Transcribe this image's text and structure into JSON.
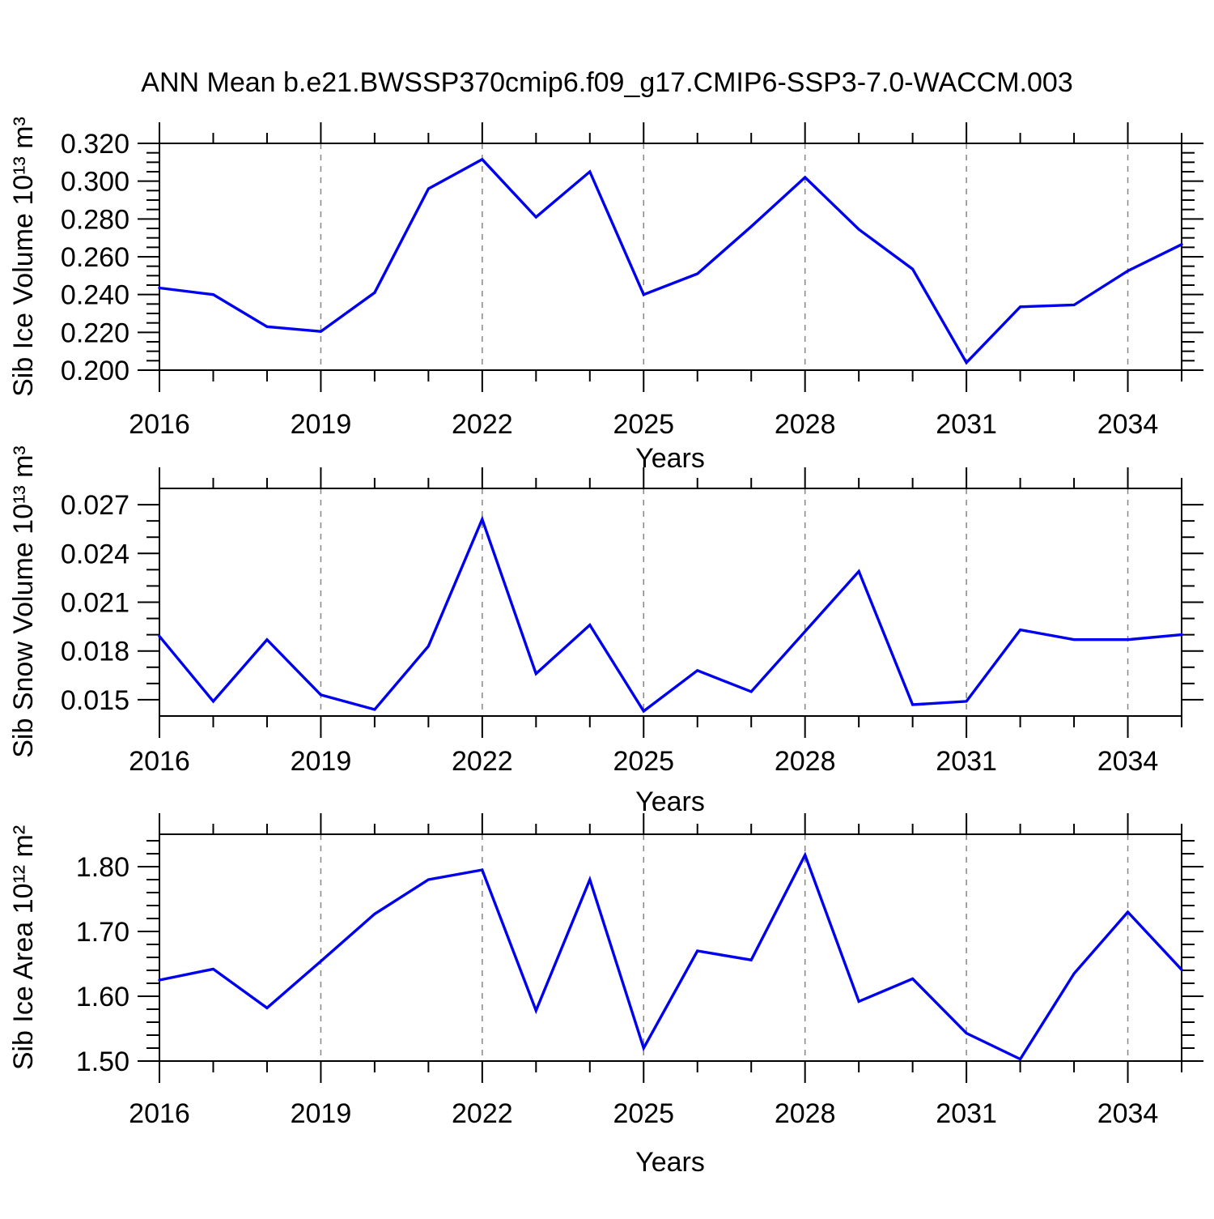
{
  "title": "ANN Mean b.e21.BWSSP370cmip6.f09_g17.CMIP6-SSP3-7.0-WACCM.003",
  "colors": {
    "line": "#0000f0",
    "grid": "#878787",
    "axis": "#000000",
    "background": "#ffffff",
    "text": "#000000"
  },
  "x_axis": {
    "label": "Years",
    "years": [
      2016,
      2017,
      2018,
      2019,
      2020,
      2021,
      2022,
      2023,
      2024,
      2025,
      2026,
      2027,
      2028,
      2029,
      2030,
      2031,
      2032,
      2033,
      2034,
      2035
    ],
    "major_tick_years": [
      2016,
      2019,
      2022,
      2025,
      2028,
      2031,
      2034
    ],
    "major_tick_labels": [
      "2016",
      "2019",
      "2022",
      "2025",
      "2028",
      "2031",
      "2034"
    ],
    "gridline_years": [
      2019,
      2022,
      2025,
      2028,
      2031,
      2034
    ]
  },
  "chart_data": [
    {
      "type": "line",
      "series_name": "Sib Ice Volume",
      "ylabel": "Sib Ice Volume 10¹³ m³",
      "xlabel": "Years",
      "x": [
        2016,
        2017,
        2018,
        2019,
        2020,
        2021,
        2022,
        2023,
        2024,
        2025,
        2026,
        2027,
        2028,
        2029,
        2030,
        2031,
        2032,
        2033,
        2034,
        2035
      ],
      "values": [
        0.2435,
        0.24,
        0.223,
        0.2205,
        0.241,
        0.296,
        0.3115,
        0.281,
        0.305,
        0.24,
        0.251,
        0.276,
        0.302,
        0.2745,
        0.2535,
        0.204,
        0.2335,
        0.2345,
        0.2525,
        0.2665
      ],
      "ylim": [
        0.2,
        0.32
      ],
      "yticks": {
        "values": [
          0.2,
          0.22,
          0.24,
          0.26,
          0.28,
          0.3,
          0.32
        ],
        "labels": [
          "0.200",
          "0.220",
          "0.240",
          "0.260",
          "0.280",
          "0.300",
          "0.320"
        ]
      },
      "y_minor_step": 0.005,
      "grid": "vertical-dashed",
      "legend": "none"
    },
    {
      "type": "line",
      "series_name": "Sib Snow Volume",
      "ylabel": "Sib Snow Volume 10¹³ m³",
      "xlabel": "Years",
      "x": [
        2016,
        2017,
        2018,
        2019,
        2020,
        2021,
        2022,
        2023,
        2024,
        2025,
        2026,
        2027,
        2028,
        2029,
        2030,
        2031,
        2032,
        2033,
        2034,
        2035
      ],
      "values": [
        0.0189,
        0.0149,
        0.0187,
        0.0153,
        0.0144,
        0.0183,
        0.0261,
        0.0166,
        0.0196,
        0.0143,
        0.0168,
        0.0155,
        0.0192,
        0.0229,
        0.0147,
        0.0149,
        0.0193,
        0.0187,
        0.0187,
        0.019
      ],
      "ylim": [
        0.014,
        0.028
      ],
      "yticks": {
        "values": [
          0.015,
          0.018,
          0.021,
          0.024,
          0.027
        ],
        "labels": [
          "0.015",
          "0.018",
          "0.021",
          "0.024",
          "0.027"
        ]
      },
      "y_minor_step": 0.001,
      "grid": "vertical-dashed",
      "legend": "none"
    },
    {
      "type": "line",
      "series_name": "Sib Ice Area",
      "ylabel": "Sib Ice Area 10¹² m²",
      "xlabel": "Years",
      "x": [
        2016,
        2017,
        2018,
        2019,
        2020,
        2021,
        2022,
        2023,
        2024,
        2025,
        2026,
        2027,
        2028,
        2029,
        2030,
        2031,
        2032,
        2033,
        2034,
        2035
      ],
      "values": [
        1.625,
        1.642,
        1.582,
        1.654,
        1.727,
        1.78,
        1.795,
        1.578,
        1.78,
        1.52,
        1.67,
        1.656,
        1.818,
        1.592,
        1.627,
        1.543,
        1.503,
        1.635,
        1.73,
        1.641
      ],
      "ylim": [
        1.5,
        1.85
      ],
      "yticks": {
        "values": [
          1.5,
          1.6,
          1.7,
          1.8
        ],
        "labels": [
          "1.50",
          "1.60",
          "1.70",
          "1.80"
        ]
      },
      "y_minor_step": 0.02,
      "grid": "vertical-dashed",
      "legend": "none"
    }
  ]
}
